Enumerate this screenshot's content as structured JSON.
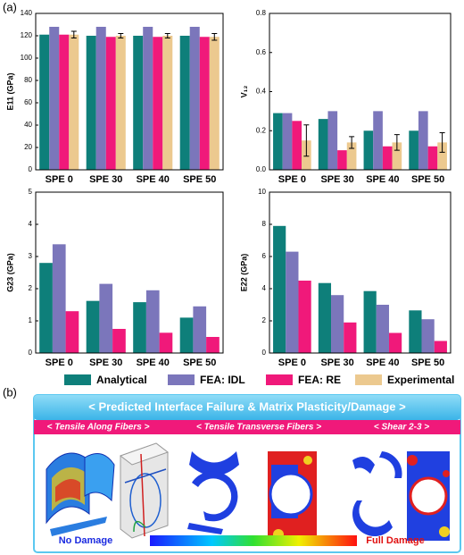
{
  "panel_labels": {
    "a": "(a)",
    "b": "(b)"
  },
  "chart_data": [
    {
      "type": "bar",
      "y_label": "E11 (GPa)",
      "categories": [
        "SPE 0",
        "SPE 30",
        "SPE 40",
        "SPE 50"
      ],
      "ylim": [
        0,
        140
      ],
      "yticks": [
        0,
        20,
        40,
        60,
        80,
        100,
        120,
        140
      ],
      "series": [
        {
          "name": "Analytical",
          "color": "#0e7f7a",
          "values": [
            121,
            120,
            120,
            120
          ]
        },
        {
          "name": "FEA: IDL",
          "color": "#7b76bb",
          "values": [
            128,
            128,
            128,
            128
          ]
        },
        {
          "name": "FEA: RE",
          "color": "#f0197a",
          "values": [
            121,
            119,
            119,
            119
          ]
        },
        {
          "name": "Experimental",
          "color": "#ecc98f",
          "values": [
            121,
            120,
            120,
            119
          ],
          "errors": [
            3,
            2,
            2,
            3
          ]
        }
      ]
    },
    {
      "type": "bar",
      "y_label": "V₁₂",
      "categories": [
        "SPE 0",
        "SPE 30",
        "SPE 40",
        "SPE 50"
      ],
      "ylim": [
        0,
        0.8
      ],
      "yticks": [
        {
          "value": 0,
          "label": "0.0"
        },
        0.2,
        0.4,
        0.6,
        0.8
      ],
      "series": [
        {
          "name": "Analytical",
          "color": "#0e7f7a",
          "values": [
            0.29,
            0.26,
            0.2,
            0.2
          ]
        },
        {
          "name": "FEA: IDL",
          "color": "#7b76bb",
          "values": [
            0.29,
            0.3,
            0.3,
            0.3
          ]
        },
        {
          "name": "FEA: RE",
          "color": "#f0197a",
          "values": [
            0.25,
            0.1,
            0.12,
            0.12
          ]
        },
        {
          "name": "Experimental",
          "color": "#ecc98f",
          "values": [
            0.15,
            0.14,
            0.14,
            0.14
          ],
          "errors": [
            0.08,
            0.03,
            0.04,
            0.05
          ]
        }
      ]
    },
    {
      "type": "bar",
      "y_label": "G23 (GPa)",
      "categories": [
        "SPE 0",
        "SPE 30",
        "SPE 40",
        "SPE 50"
      ],
      "ylim": [
        0,
        5
      ],
      "yticks": [
        0,
        1,
        2,
        3,
        4,
        5
      ],
      "series": [
        {
          "name": "Analytical",
          "color": "#0e7f7a",
          "values": [
            2.8,
            1.62,
            1.58,
            1.1
          ]
        },
        {
          "name": "FEA: IDL",
          "color": "#7b76bb",
          "values": [
            3.38,
            2.15,
            1.95,
            1.45
          ]
        },
        {
          "name": "FEA: RE",
          "color": "#f0197a",
          "values": [
            1.3,
            0.75,
            0.63,
            0.5
          ]
        }
      ]
    },
    {
      "type": "bar",
      "y_label": "E22 (GPa)",
      "categories": [
        "SPE 0",
        "SPE 30",
        "SPE 40",
        "SPE 50"
      ],
      "ylim": [
        0,
        10
      ],
      "yticks": [
        0,
        2,
        4,
        6,
        8,
        10
      ],
      "series": [
        {
          "name": "Analytical",
          "color": "#0e7f7a",
          "values": [
            7.9,
            4.35,
            3.85,
            2.65
          ]
        },
        {
          "name": "FEA: IDL",
          "color": "#7b76bb",
          "values": [
            6.3,
            3.6,
            3.0,
            2.1
          ]
        },
        {
          "name": "FEA: RE",
          "color": "#f0197a",
          "values": [
            4.5,
            1.9,
            1.25,
            0.75
          ]
        }
      ]
    }
  ],
  "figure_b": {
    "banner": "< Predicted Interface Failure & Matrix Plasticity/Damage >",
    "sections": [
      "< Tensile Along Fibers >",
      "< Tensile Transverse Fibers >",
      "< Shear 2-3 >"
    ],
    "scale_low": "No Damage",
    "scale_high": "Full Damage"
  }
}
